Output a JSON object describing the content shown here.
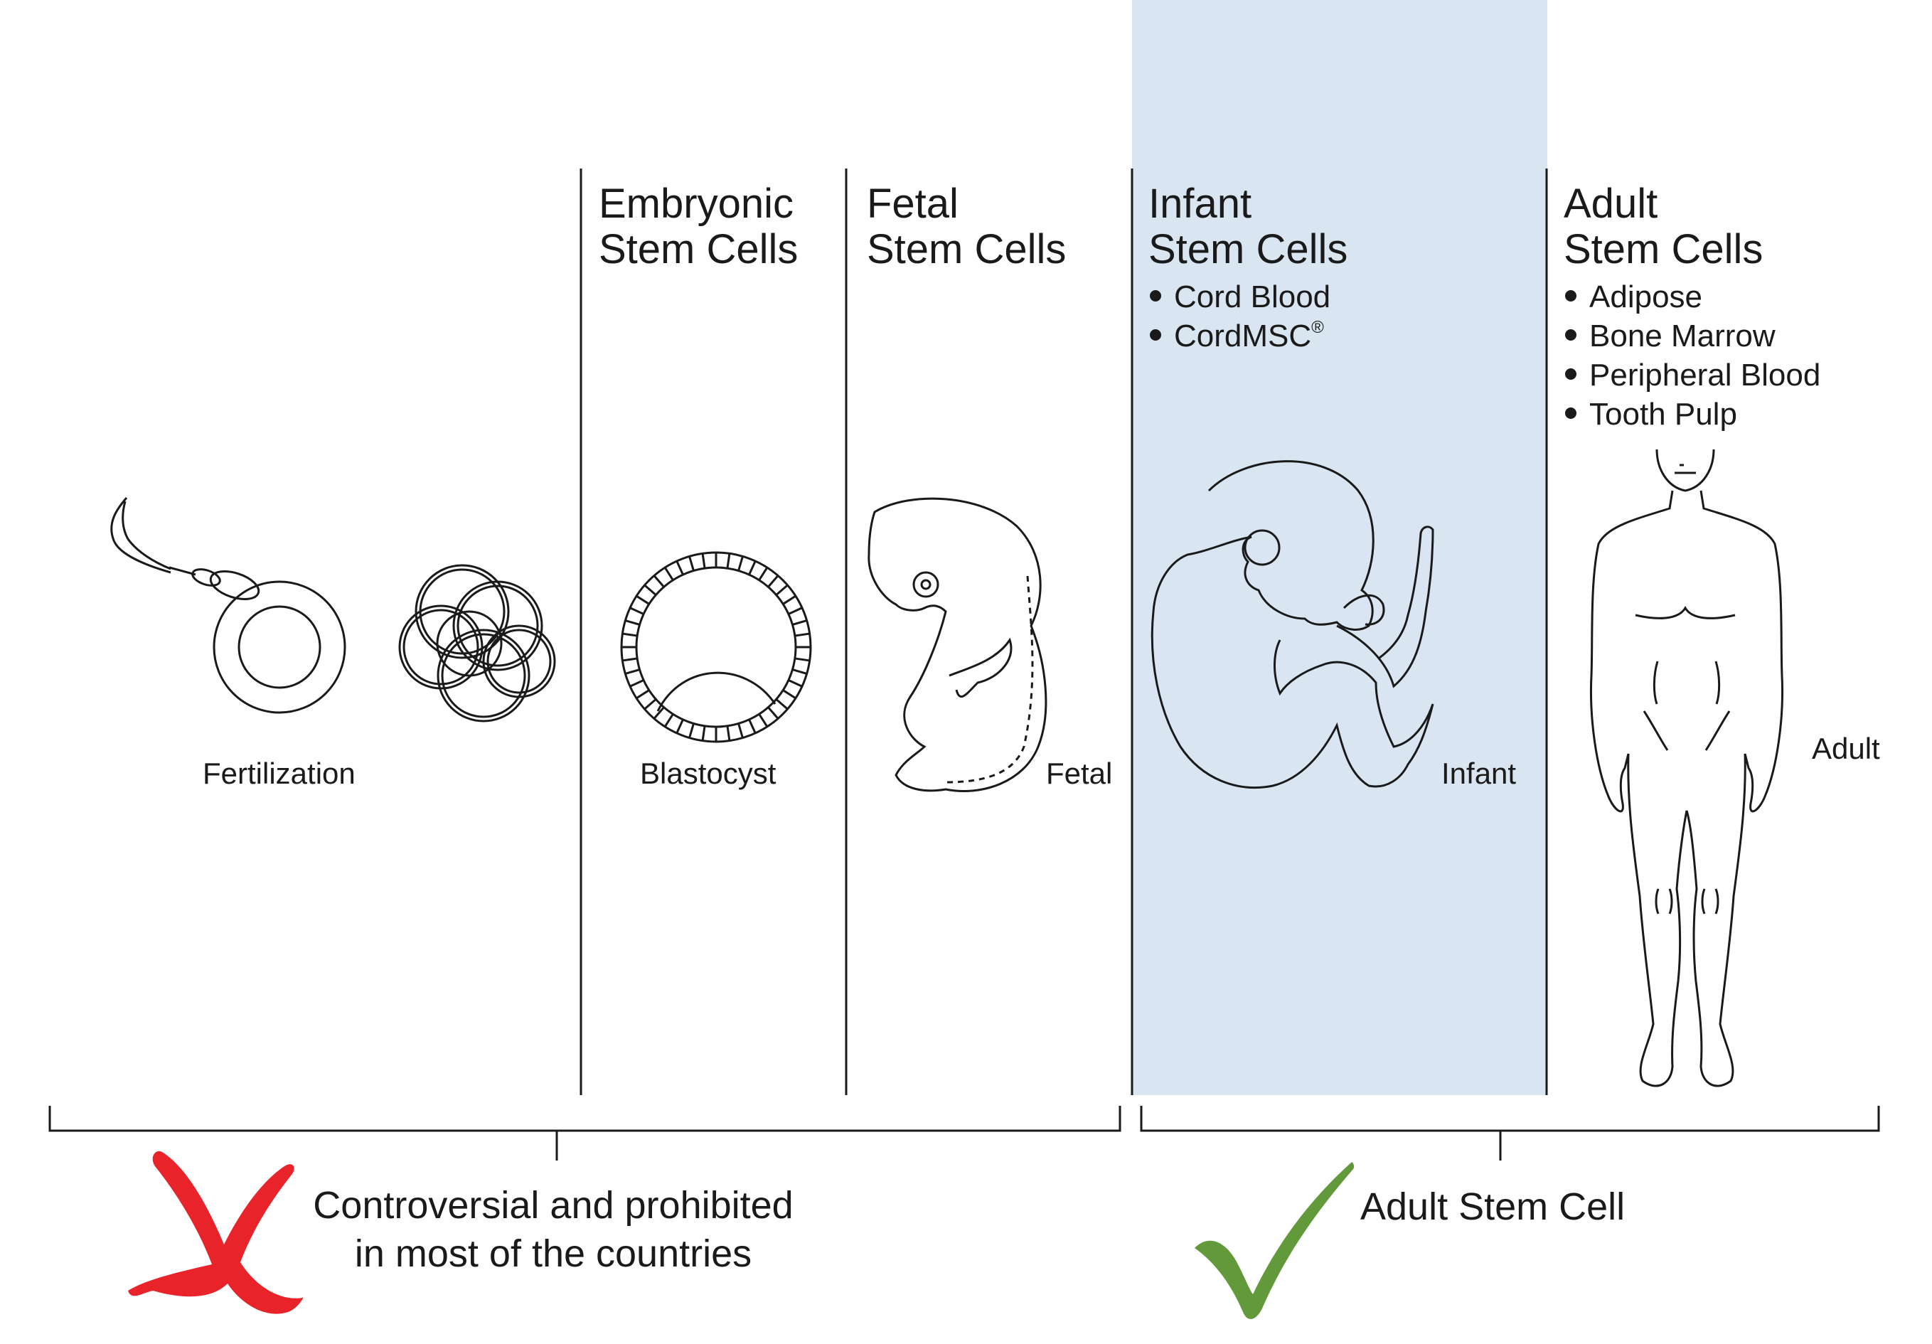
{
  "columns": {
    "embryonic": {
      "title_line1": "Embryonic",
      "title_line2": "Stem Cells"
    },
    "fetal": {
      "title_line1": "Fetal",
      "title_line2": "Stem Cells"
    },
    "infant": {
      "title_line1": "Infant",
      "title_line2": "Stem Cells",
      "items": [
        "Cord Blood",
        "CordMSC"
      ],
      "registered_mark": "®"
    },
    "adult": {
      "title_line1": "Adult",
      "title_line2": "Stem Cells",
      "items": [
        "Adipose",
        "Bone Marrow",
        "Peripheral Blood",
        "Tooth Pulp"
      ]
    }
  },
  "captions": {
    "fertilization": "Fertilization",
    "blastocyst": "Blastocyst",
    "fetal": "Fetal",
    "infant": "Infant",
    "adult": "Adult"
  },
  "groups": {
    "prohibited": {
      "line1": "Controversial and prohibited",
      "line2": "in most of the countries",
      "icon": "x-mark-icon"
    },
    "approved": {
      "label": "Adult Stem Cell",
      "icon": "check-mark-icon"
    }
  },
  "colors": {
    "highlight": "#d9e6f1",
    "line": "#1a1a1a",
    "cross": "#e8232a",
    "check": "#629a3b"
  }
}
